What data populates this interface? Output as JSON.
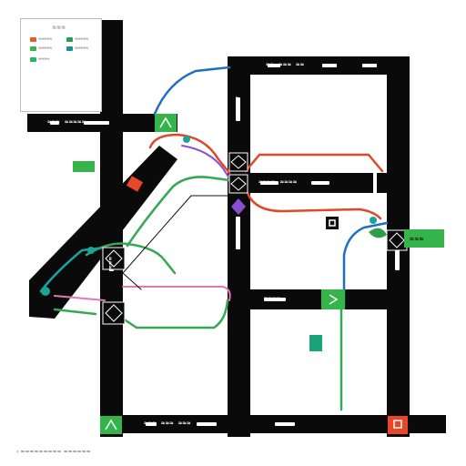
{
  "map": {
    "legend": {
      "title": "≋≋≋",
      "items": [
        {
          "icon": "red-route-swatch",
          "color": "#e85a2a",
          "label": "≈≈≈≈≈"
        },
        {
          "icon": "green-route-swatch",
          "color": "#2e9e4a",
          "label": "≈≈≈≈≈"
        },
        {
          "icon": "green-park-swatch",
          "color": "#3bb34a",
          "label": "≈≈≈≈≈"
        },
        {
          "icon": "teal-station-swatch",
          "color": "#1a8f8f",
          "label": "≈≈≈≈≈"
        },
        {
          "icon": "green-marker-swatch",
          "color": "#22b866",
          "label": "≈≈≈≈"
        }
      ]
    },
    "street_labels": [
      {
        "id": "top-left-street",
        "text": "≈≈≈ ≈≈≈≈≈"
      },
      {
        "id": "north-street",
        "text": "≈≈  ≈≈≈  ≈≈"
      },
      {
        "id": "middle-street",
        "text": "≈≈≈≈  ≈≈≈≈"
      },
      {
        "id": "lower-street",
        "text": "≈≈≈≈"
      },
      {
        "id": "bottom-street",
        "text": "≈≈≈  ≈≈≈  ≈≈≈"
      },
      {
        "id": "west-avenue",
        "text": "≈≈≈"
      },
      {
        "id": "central-avenue",
        "text": "≈≈≈"
      },
      {
        "id": "east-avenue",
        "text": "≈≈≈"
      }
    ],
    "poi_label": "≈≈≈",
    "attribution": "‹  ≈≈≈≈≈≈≈≈≈ ≈≈≈≈≈≈"
  },
  "colors": {
    "road": "#0a0a0a",
    "route_blue": "#1f6fc2",
    "route_red": "#e0482a",
    "route_green": "#34a853",
    "route_pink": "#e07ab0",
    "route_purple": "#8a4fd0",
    "park_green": "#34b44a",
    "station_teal": "#1aa39a",
    "poi_red": "#e8472a"
  }
}
